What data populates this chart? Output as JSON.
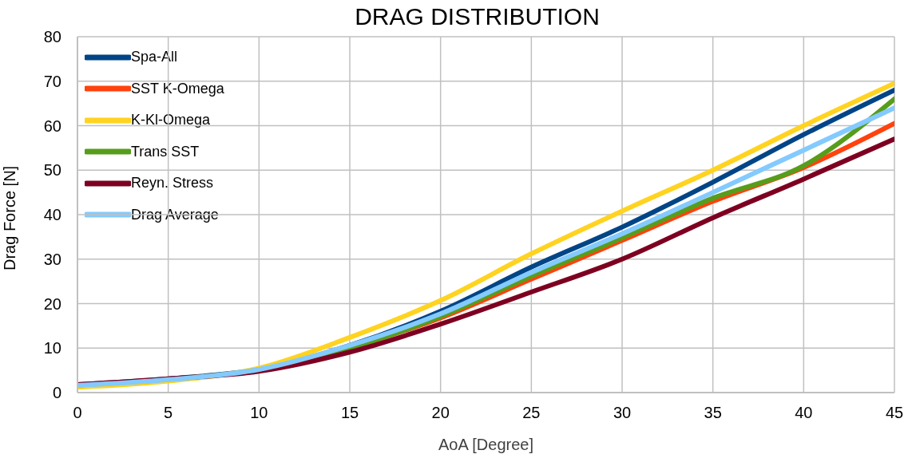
{
  "chart_data": {
    "type": "line",
    "title": "DRAG DISTRIBUTION",
    "xlabel": "AoA [Degree]",
    "ylabel": "Drag Force [N]",
    "x": [
      0,
      5,
      10,
      15,
      20,
      25,
      30,
      35,
      40,
      45
    ],
    "series": [
      {
        "name": "Spa-All",
        "color": "#004586",
        "values": [
          1.8,
          3.1,
          5.2,
          10.6,
          18.3,
          28.2,
          37.2,
          47.3,
          58,
          68
        ]
      },
      {
        "name": "SST K-Omega",
        "color": "#ff420e",
        "values": [
          null,
          null,
          null,
          10,
          16.8,
          25.5,
          34.2,
          43,
          50.6,
          60.5
        ]
      },
      {
        "name": "K-Kl-Omega",
        "color": "#ffd320",
        "values": [
          1.2,
          2.6,
          5.5,
          12.4,
          20.7,
          31.2,
          40.8,
          50,
          60,
          69.5
        ]
      },
      {
        "name": "Trans SST",
        "color": "#579d1c",
        "values": [
          1.7,
          3.0,
          5.1,
          10,
          17.1,
          26.2,
          34.8,
          43.7,
          51,
          66
        ]
      },
      {
        "name": "Reyn. Stress",
        "color": "#7e0021",
        "values": [
          1.8,
          3.1,
          4.8,
          9.1,
          15.4,
          22.6,
          30,
          39.3,
          48,
          57
        ]
      },
      {
        "name": "Drag Average",
        "color": "#83caff",
        "values": [
          1.6,
          2.9,
          5.2,
          10.6,
          17.7,
          27,
          35.7,
          45,
          54.5,
          64
        ]
      }
    ],
    "xlim": [
      0,
      45
    ],
    "xticks": [
      0,
      5,
      10,
      15,
      20,
      25,
      30,
      35,
      40,
      45
    ],
    "ylim": [
      0,
      80
    ],
    "yticks": [
      0,
      10,
      20,
      30,
      40,
      50,
      60,
      70,
      80
    ],
    "grid": true,
    "legend": "top left",
    "marker": "none",
    "line_style": "solid"
  }
}
